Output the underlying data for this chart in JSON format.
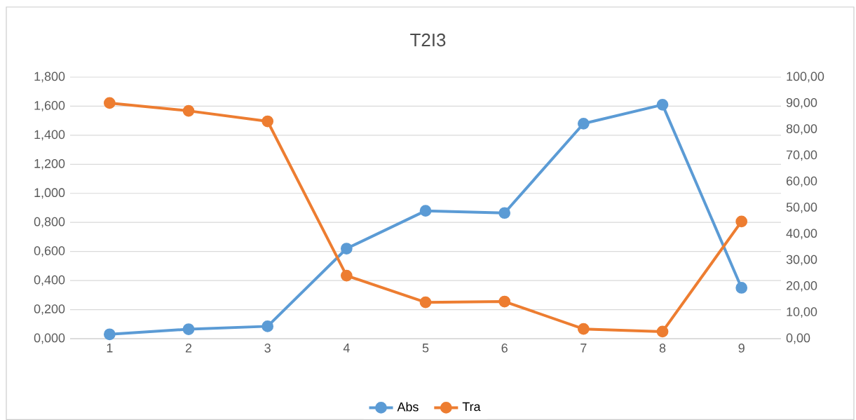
{
  "chart_data": {
    "type": "line",
    "title": "T2I3",
    "categories": [
      "1",
      "2",
      "3",
      "4",
      "5",
      "6",
      "7",
      "8",
      "9"
    ],
    "series": [
      {
        "name": "Abs",
        "color": "#5b9bd5",
        "values": [
          0.03,
          0.065,
          0.085,
          0.62,
          0.88,
          0.865,
          1.48,
          1.61,
          0.35
        ]
      },
      {
        "name": "Tra",
        "color": "#ed7d31",
        "axis": "y2",
        "values": [
          90.1,
          87.1,
          83.1,
          24.1,
          13.9,
          14.2,
          3.7,
          2.7,
          44.8
        ]
      }
    ],
    "ylim": [
      0,
      1.8
    ],
    "yticks": [
      {
        "value": 0,
        "label": "0,000"
      },
      {
        "value": 0.2,
        "label": "0,200"
      },
      {
        "value": 0.4,
        "label": "0,400"
      },
      {
        "value": 0.6,
        "label": "0,600"
      },
      {
        "value": 0.8,
        "label": "0,800"
      },
      {
        "value": 1.0,
        "label": "1,000"
      },
      {
        "value": 1.2,
        "label": "1,200"
      },
      {
        "value": 1.4,
        "label": "1,400"
      },
      {
        "value": 1.6,
        "label": "1,600"
      },
      {
        "value": 1.8,
        "label": "1,800"
      }
    ],
    "y2lim": [
      0,
      100
    ],
    "y2ticks": [
      {
        "value": 0,
        "label": "0,00"
      },
      {
        "value": 10,
        "label": "10,00"
      },
      {
        "value": 20,
        "label": "20,00"
      },
      {
        "value": 30,
        "label": "30,00"
      },
      {
        "value": 40,
        "label": "40,00"
      },
      {
        "value": 50,
        "label": "50,00"
      },
      {
        "value": 60,
        "label": "60,00"
      },
      {
        "value": 70,
        "label": "70,00"
      },
      {
        "value": 80,
        "label": "80,00"
      },
      {
        "value": 90,
        "label": "90,00"
      },
      {
        "value": 100,
        "label": "100,00"
      }
    ],
    "grid": "y",
    "legend": "bottom",
    "marker": "circle",
    "line_style": "solid"
  }
}
